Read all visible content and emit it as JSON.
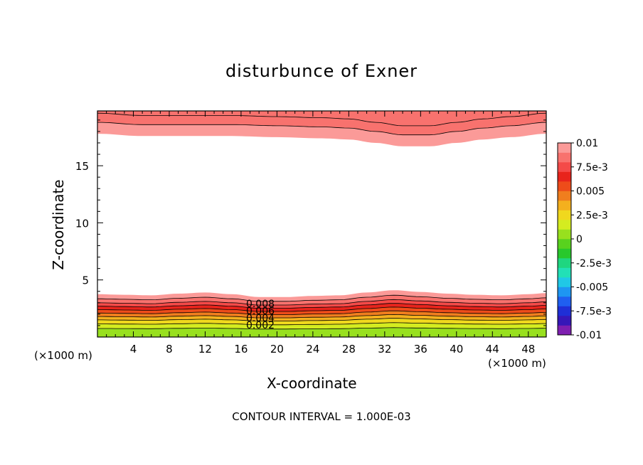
{
  "chart_data": {
    "type": "heatmap",
    "title": "disturbunce of Exner",
    "xlabel": "X-coordinate",
    "ylabel": "Z-coordinate",
    "x_unit": "(×1000 m)",
    "xlim": [
      0,
      50
    ],
    "ylim": [
      0,
      19.8
    ],
    "x_ticks": [
      "4",
      "8",
      "12",
      "16",
      "20",
      "24",
      "28",
      "32",
      "36",
      "40",
      "44",
      "48"
    ],
    "y_ticks": [
      "5",
      "10",
      "15"
    ],
    "contour_interval_text": "CONTOUR INTERVAL = 1.000E-03",
    "contour_labels": [
      "0.008",
      "0.006",
      "0.004",
      "0.002"
    ],
    "colorbar": {
      "labels": [
        "0.01",
        "7.5e-3",
        "0.005",
        "2.5e-3",
        "0",
        "-2.5e-3",
        "-0.005",
        "-7.5e-3",
        "-0.01"
      ],
      "range": [
        -0.01,
        0.01
      ],
      "colors": [
        "#7e1fb0",
        "#3617b8",
        "#1f2fd6",
        "#1f5ff0",
        "#1e96f2",
        "#20c8e6",
        "#22e0b6",
        "#1fd680",
        "#28c82c",
        "#58d21e",
        "#98e01e",
        "#d4ec20",
        "#f0d81e",
        "#f4b01e",
        "#f07e1e",
        "#ee4c1a",
        "#e8241c",
        "#f44a48",
        "#f8726e",
        "#fb9a98"
      ]
    },
    "bottom_layer": {
      "description_free": true,
      "profile_x": [
        0,
        3,
        6,
        9,
        12,
        15,
        18,
        21,
        24,
        27,
        30,
        33,
        36,
        39,
        42,
        45,
        48,
        50
      ],
      "profile_offset_km": [
        0.0,
        -0.05,
        -0.1,
        0.05,
        0.15,
        0.0,
        -0.25,
        -0.25,
        -0.15,
        -0.1,
        0.15,
        0.35,
        0.2,
        0.05,
        -0.05,
        -0.1,
        0.0,
        0.1
      ],
      "levels": [
        {
          "value": 0.0095,
          "top_km": 3.75
        },
        {
          "value": 0.0085,
          "top_km": 3.35
        },
        {
          "value": 0.0075,
          "top_km": 3.0
        },
        {
          "value": 0.0065,
          "top_km": 2.7
        },
        {
          "value": 0.0055,
          "top_km": 2.4
        },
        {
          "value": 0.0045,
          "top_km": 2.1
        },
        {
          "value": 0.0035,
          "top_km": 1.8
        },
        {
          "value": 0.0025,
          "top_km": 1.5
        },
        {
          "value": 0.0015,
          "top_km": 1.15
        },
        {
          "value": 0.0005,
          "top_km": 0.75
        }
      ]
    },
    "top_layer": {
      "profile_x": [
        0,
        5,
        10,
        15,
        20,
        25,
        28,
        31,
        34,
        37,
        40,
        43,
        46,
        50
      ],
      "edge_km": [
        17.8,
        17.6,
        17.6,
        17.6,
        17.5,
        17.4,
        17.3,
        17.0,
        16.7,
        16.7,
        17.0,
        17.3,
        17.5,
        17.8
      ],
      "levels": [
        {
          "value": 0.0095,
          "bottom_offset_km": 0.0
        },
        {
          "value": 0.0085,
          "bottom_offset_km": 1.0
        }
      ]
    }
  }
}
